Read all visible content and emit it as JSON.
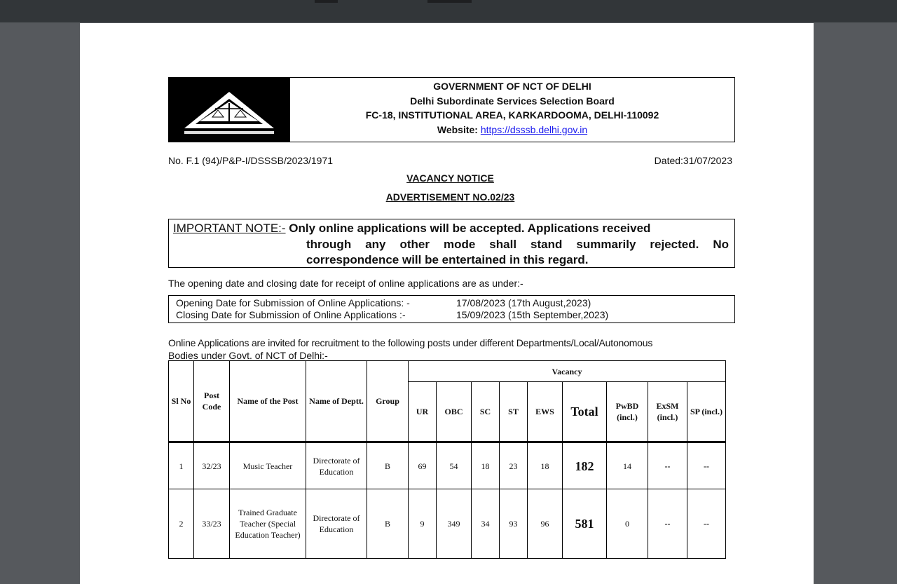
{
  "header": {
    "line1": "GOVERNMENT OF NCT OF DELHI",
    "line2": "Delhi Subordinate Services Selection Board",
    "line3": "FC-18, INSTITUTIONAL AREA, KARKARDOOMA, DELHI-110092",
    "website_label": "Website:",
    "website_link": "https://dsssb.delhi.gov.in"
  },
  "ref_no": "No. F.1 (94)/P&P-I/DSSSB/2023/1971",
  "dated": "Dated:31/07/2023",
  "title": "VACANCY NOTICE",
  "advertisement": "ADVERTISEMENT NO.02/23",
  "note": {
    "label": "IMPORTANT NOTE:-",
    "line1": "Only online applications will be accepted. Applications received",
    "line2": "through any other mode shall stand summarily rejected.  No",
    "line3": "correspondence will be entertained in this regard."
  },
  "dates_intro": "The opening date and closing date for receipt of online applications are as under:-",
  "dates": {
    "open_label": "Opening Date for Submission of Online Applications: -",
    "open_value": "17/08/2023 (17th August,2023)",
    "close_label": "Closing Date for Submission of Online Applications  :-",
    "close_value": "15/09/2023 (15th September,2023)"
  },
  "intro_line1": "Online Applications are invited for recruitment to the following posts under different Departments/Local/Autonomous",
  "intro_line2": "Bodies under Govt. of NCT of Delhi:-",
  "table": {
    "h": {
      "sl": "Sl No",
      "code": "Post Code",
      "post": "Name of the Post",
      "dept": "Name of Deptt.",
      "group": "Group",
      "vacancy": "Vacancy",
      "ur": "UR",
      "obc": "OBC",
      "sc": "SC",
      "st": "ST",
      "ews": "EWS",
      "total": "Total",
      "pwbd": "PwBD (incl.)",
      "exsm": "ExSM (incl.)",
      "sp": "SP (incl.)"
    },
    "rows": [
      {
        "sl": "1",
        "code": "32/23",
        "post": "Music Teacher",
        "dept": "Directorate of Education",
        "group": "B",
        "ur": "69",
        "obc": "54",
        "sc": "18",
        "st": "23",
        "ews": "18",
        "total": "182",
        "pwbd": "14",
        "exsm": "--",
        "sp": "--"
      },
      {
        "sl": "2",
        "code": "33/23",
        "post": "Trained Graduate Teacher (Special Education Teacher)",
        "dept": "Directorate of Education",
        "group": "B",
        "ur": "9",
        "obc": "349",
        "sc": "34",
        "st": "93",
        "ews": "96",
        "total": "581",
        "pwbd": "0",
        "exsm": "--",
        "sp": "--"
      }
    ]
  }
}
